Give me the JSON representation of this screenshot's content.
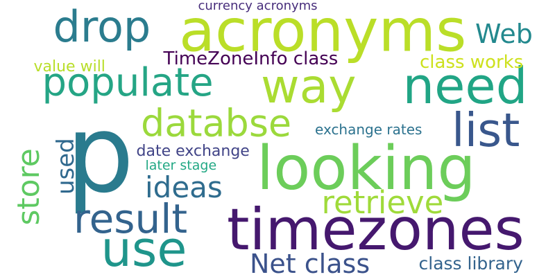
{
  "cloud": {
    "background": "#ffffff",
    "words": [
      {
        "id": "p",
        "text": "p",
        "color": "#2a7b8e",
        "orientation": "horizontal"
      },
      {
        "id": "acronyms",
        "text": "acronyms",
        "color": "#bade28",
        "orientation": "horizontal"
      },
      {
        "id": "looking",
        "text": "looking",
        "color": "#6ccd5a",
        "orientation": "horizontal"
      },
      {
        "id": "timezones",
        "text": "timezones",
        "color": "#45186e",
        "orientation": "horizontal"
      },
      {
        "id": "need",
        "text": "need",
        "color": "#21a585",
        "orientation": "horizontal"
      },
      {
        "id": "way",
        "text": "way",
        "color": "#aadc32",
        "orientation": "horizontal"
      },
      {
        "id": "populate",
        "text": "populate",
        "color": "#25a585",
        "orientation": "horizontal"
      },
      {
        "id": "use",
        "text": "use",
        "color": "#1f958b",
        "orientation": "horizontal"
      },
      {
        "id": "drop",
        "text": "drop",
        "color": "#2b7c8e",
        "orientation": "horizontal"
      },
      {
        "id": "list",
        "text": "list",
        "color": "#39578c",
        "orientation": "horizontal"
      },
      {
        "id": "store",
        "text": "store",
        "color": "#5ec962",
        "orientation": "vertical"
      },
      {
        "id": "result",
        "text": "result",
        "color": "#33638d",
        "orientation": "horizontal"
      },
      {
        "id": "databse",
        "text": "databse",
        "color": "#9bd93c",
        "orientation": "horizontal"
      },
      {
        "id": "retrieve",
        "text": "retrieve",
        "color": "#9fda3a",
        "orientation": "horizontal"
      },
      {
        "id": "ideas",
        "text": "ideas",
        "color": "#2f6c8e",
        "orientation": "horizontal"
      },
      {
        "id": "used",
        "text": "used",
        "color": "#30698e",
        "orientation": "vertical"
      },
      {
        "id": "web",
        "text": "Web",
        "color": "#23898e",
        "orientation": "horizontal"
      },
      {
        "id": "net_class",
        "text": "Net class",
        "color": "#3b528b",
        "orientation": "horizontal"
      },
      {
        "id": "timezoneinfo_class",
        "text": "TimeZoneInfo class",
        "color": "#440154",
        "orientation": "horizontal"
      },
      {
        "id": "class_library",
        "text": "class library",
        "color": "#33638d",
        "orientation": "horizontal"
      },
      {
        "id": "currency_acronyms",
        "text": "currency acronyms",
        "color": "#472d7b",
        "orientation": "horizontal"
      },
      {
        "id": "class_works",
        "text": "class works",
        "color": "#cde11d",
        "orientation": "horizontal"
      },
      {
        "id": "value_will",
        "text": "value will",
        "color": "#b8de29",
        "orientation": "horizontal"
      },
      {
        "id": "date_exchange",
        "text": "date exchange",
        "color": "#414487",
        "orientation": "horizontal"
      },
      {
        "id": "exchange_rates",
        "text": "exchange rates",
        "color": "#2c728e",
        "orientation": "horizontal"
      },
      {
        "id": "later_stage",
        "text": "later stage",
        "color": "#22a884",
        "orientation": "horizontal"
      }
    ]
  }
}
